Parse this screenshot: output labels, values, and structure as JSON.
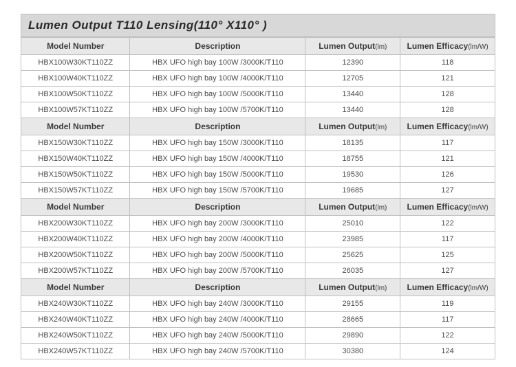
{
  "title": "Lumen Output T110 Lensing(110° X110° )",
  "colors": {
    "title_bg": "#d8d8d8",
    "header_bg": "#e8e8e8",
    "border": "#bfbfbf",
    "text": "#4a4a4a",
    "title_text": "#2a2a2a"
  },
  "headers": {
    "model": "Model Number",
    "desc": "Description",
    "lumen": "Lumen Output",
    "lumen_unit": "(lm)",
    "eff": "Lumen Efficacy",
    "eff_unit": "(lm/W)"
  },
  "groups": [
    {
      "rows": [
        {
          "model": "HBX100W30KT110ZZ",
          "desc": "HBX UFO high bay 100W /3000K/T110",
          "lumen": "12390",
          "eff": "118"
        },
        {
          "model": "HBX100W40KT110ZZ",
          "desc": "HBX UFO high bay 100W /4000K/T110",
          "lumen": "12705",
          "eff": "121"
        },
        {
          "model": "HBX100W50KT110ZZ",
          "desc": "HBX UFO high bay 100W /5000K/T110",
          "lumen": "13440",
          "eff": "128"
        },
        {
          "model": "HBX100W57KT110ZZ",
          "desc": "HBX UFO high bay 100W /5700K/T110",
          "lumen": "13440",
          "eff": "128"
        }
      ]
    },
    {
      "rows": [
        {
          "model": "HBX150W30KT110ZZ",
          "desc": "HBX UFO high bay 150W /3000K/T110",
          "lumen": "18135",
          "eff": "117"
        },
        {
          "model": "HBX150W40KT110ZZ",
          "desc": "HBX UFO high bay 150W /4000K/T110",
          "lumen": "18755",
          "eff": "121"
        },
        {
          "model": "HBX150W50KT110ZZ",
          "desc": "HBX UFO high bay 150W /5000K/T110",
          "lumen": "19530",
          "eff": "126"
        },
        {
          "model": "HBX150W57KT110ZZ",
          "desc": "HBX UFO high bay 150W /5700K/T110",
          "lumen": "19685",
          "eff": "127"
        }
      ]
    },
    {
      "rows": [
        {
          "model": "HBX200W30KT110ZZ",
          "desc": "HBX UFO high bay 200W /3000K/T110",
          "lumen": "25010",
          "eff": "122"
        },
        {
          "model": "HBX200W40KT110ZZ",
          "desc": "HBX UFO high bay 200W /4000K/T110",
          "lumen": "23985",
          "eff": "117"
        },
        {
          "model": "HBX200W50KT110ZZ",
          "desc": "HBX UFO high bay 200W /5000K/T110",
          "lumen": "25625",
          "eff": "125"
        },
        {
          "model": "HBX200W57KT110ZZ",
          "desc": "HBX UFO high bay 200W /5700K/T110",
          "lumen": "26035",
          "eff": "127"
        }
      ]
    },
    {
      "rows": [
        {
          "model": "HBX240W30KT110ZZ",
          "desc": "HBX UFO high bay 240W /3000K/T110",
          "lumen": "29155",
          "eff": "119"
        },
        {
          "model": "HBX240W40KT110ZZ",
          "desc": "HBX UFO high bay 240W /4000K/T110",
          "lumen": "28665",
          "eff": "117"
        },
        {
          "model": "HBX240W50KT110ZZ",
          "desc": "HBX UFO high bay 240W /5000K/T110",
          "lumen": "29890",
          "eff": "122"
        },
        {
          "model": "HBX240W57KT110ZZ",
          "desc": "HBX UFO high bay 240W /5700K/T110",
          "lumen": "30380",
          "eff": "124"
        }
      ]
    }
  ]
}
